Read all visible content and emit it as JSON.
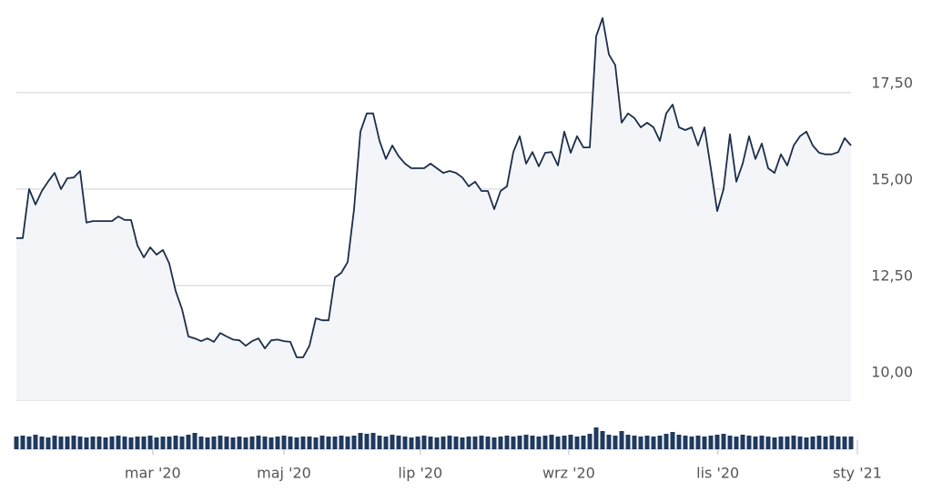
{
  "chart_data": {
    "type": "line",
    "series": [
      {
        "color": "#1c2e4a",
        "values": [
          13.73,
          13.73,
          15.0,
          14.6,
          14.95,
          15.2,
          15.42,
          15.0,
          15.28,
          15.3,
          15.47,
          14.13,
          14.17,
          14.17,
          14.17,
          14.17,
          14.29,
          14.2,
          14.2,
          13.54,
          13.23,
          13.49,
          13.3,
          13.42,
          13.07,
          12.36,
          11.89,
          11.18,
          11.13,
          11.06,
          11.13,
          11.04,
          11.27,
          11.18,
          11.1,
          11.08,
          10.94,
          11.06,
          11.13,
          10.87,
          11.08,
          11.1,
          11.06,
          11.04,
          10.64,
          10.64,
          10.94,
          11.65,
          11.6,
          11.6,
          12.71,
          12.83,
          13.11,
          14.48,
          16.49,
          16.96,
          16.96,
          16.25,
          15.78,
          16.13,
          15.85,
          15.66,
          15.54,
          15.54,
          15.54,
          15.66,
          15.54,
          15.42,
          15.47,
          15.42,
          15.3,
          15.07,
          15.19,
          14.95,
          14.95,
          14.48,
          14.95,
          15.07,
          15.96,
          16.37,
          15.66,
          15.96,
          15.59,
          15.94,
          15.96,
          15.61,
          16.49,
          15.94,
          16.37,
          16.08,
          16.08,
          18.96,
          19.43,
          18.49,
          18.21,
          16.72,
          16.96,
          16.84,
          16.6,
          16.72,
          16.6,
          16.25,
          16.96,
          17.19,
          16.6,
          16.53,
          16.6,
          16.13,
          16.6,
          15.54,
          14.43,
          15.0,
          16.42,
          15.19,
          15.66,
          16.37,
          15.78,
          16.18,
          15.54,
          15.42,
          15.9,
          15.61,
          16.13,
          16.37,
          16.49,
          16.13,
          15.94,
          15.9,
          15.9,
          15.96,
          16.32,
          16.13
        ]
      }
    ],
    "volume": {
      "color": "#1f3a5f",
      "ylim": [
        0,
        32
      ],
      "values": [
        14,
        15,
        14,
        16,
        14,
        13,
        15,
        14,
        14,
        15,
        14,
        13,
        14,
        14,
        13,
        14,
        15,
        14,
        13,
        14,
        14,
        15,
        13,
        14,
        14,
        15,
        14,
        16,
        18,
        14,
        13,
        14,
        15,
        14,
        13,
        14,
        13,
        14,
        15,
        14,
        13,
        14,
        15,
        14,
        13,
        14,
        14,
        13,
        15,
        14,
        14,
        15,
        14,
        15,
        18,
        17,
        18,
        15,
        14,
        16,
        15,
        14,
        13,
        14,
        15,
        14,
        13,
        14,
        15,
        14,
        13,
        14,
        14,
        15,
        14,
        13,
        14,
        15,
        14,
        15,
        16,
        15,
        14,
        15,
        16,
        14,
        15,
        16,
        14,
        15,
        17,
        24,
        20,
        16,
        15,
        20,
        16,
        15,
        14,
        15,
        14,
        15,
        17,
        19,
        16,
        15,
        14,
        15,
        14,
        15,
        16,
        17,
        15,
        14,
        16,
        15,
        14,
        15,
        14,
        13,
        14,
        14,
        15,
        14,
        13,
        14,
        15,
        14,
        15,
        14,
        14,
        14
      ]
    },
    "xlim": [
      0,
      131
    ],
    "xticks": [
      {
        "value": 21.4,
        "label": "mar '20"
      },
      {
        "value": 42,
        "label": "maj '20"
      },
      {
        "value": 63.4,
        "label": "lip '20"
      },
      {
        "value": 86.7,
        "label": "wrz '20"
      },
      {
        "value": 110.1,
        "label": "lis '20"
      },
      {
        "value": 132,
        "label": "sty '21"
      }
    ],
    "ylim": [
      9.53,
      19.9
    ],
    "yticks": [
      {
        "value": 10,
        "label": "10,00"
      },
      {
        "value": 12.5,
        "label": "12,50"
      },
      {
        "value": 15,
        "label": "15,00"
      },
      {
        "value": 17.5,
        "label": "17,50"
      }
    ],
    "grid": true
  }
}
